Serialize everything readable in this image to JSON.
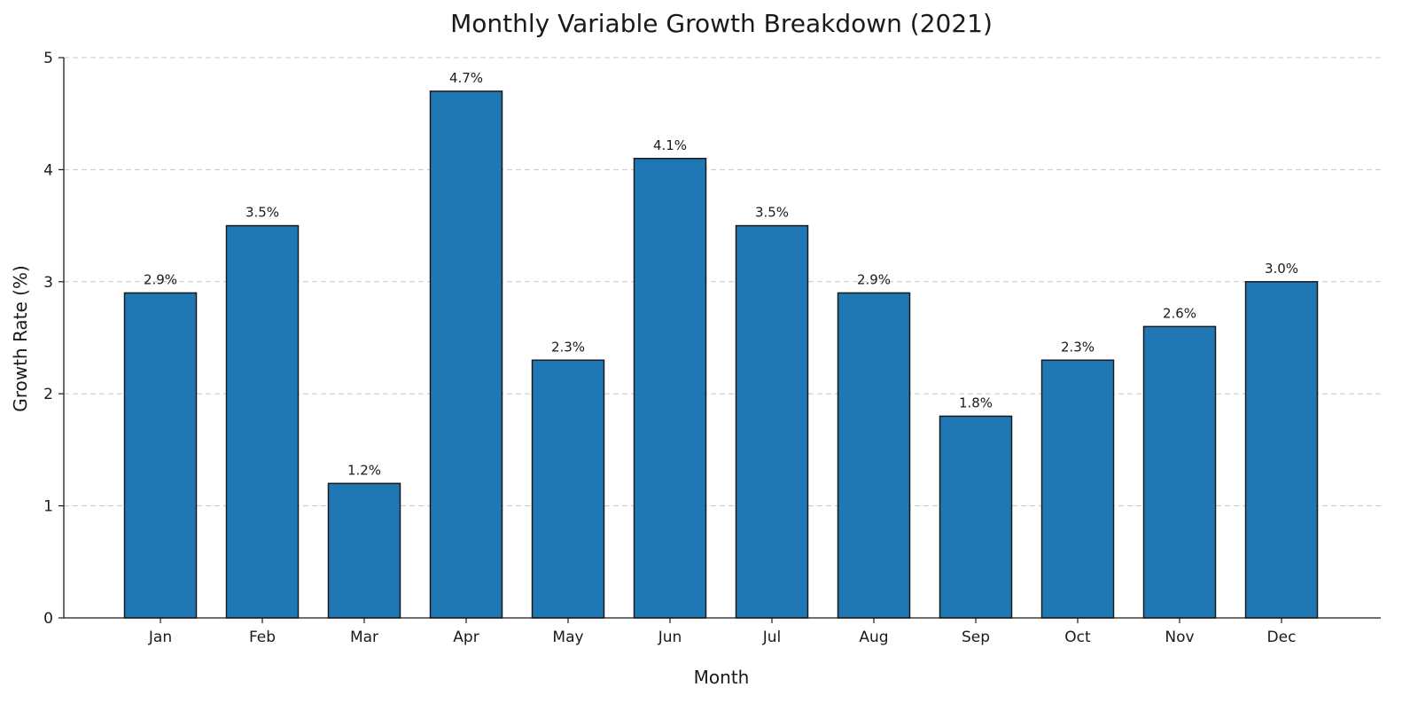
{
  "chart_data": {
    "type": "bar",
    "title": "Monthly Variable Growth Breakdown (2021)",
    "xlabel": "Month",
    "ylabel": "Growth Rate (%)",
    "categories": [
      "Jan",
      "Feb",
      "Mar",
      "Apr",
      "May",
      "Jun",
      "Jul",
      "Aug",
      "Sep",
      "Oct",
      "Nov",
      "Dec"
    ],
    "values": [
      2.9,
      3.5,
      1.2,
      4.7,
      2.3,
      4.1,
      3.5,
      2.9,
      1.8,
      2.3,
      2.6,
      3.0
    ],
    "data_labels": [
      "2.9%",
      "3.5%",
      "1.2%",
      "4.7%",
      "2.3%",
      "4.1%",
      "3.5%",
      "2.9%",
      "1.8%",
      "2.3%",
      "2.6%",
      "3.0%"
    ],
    "ylim": [
      0,
      5
    ],
    "yticks": [
      0,
      1,
      2,
      3,
      4,
      5
    ],
    "grid": true,
    "bar_color": "#1f77b4",
    "edge_color": "#1a1a1a"
  }
}
